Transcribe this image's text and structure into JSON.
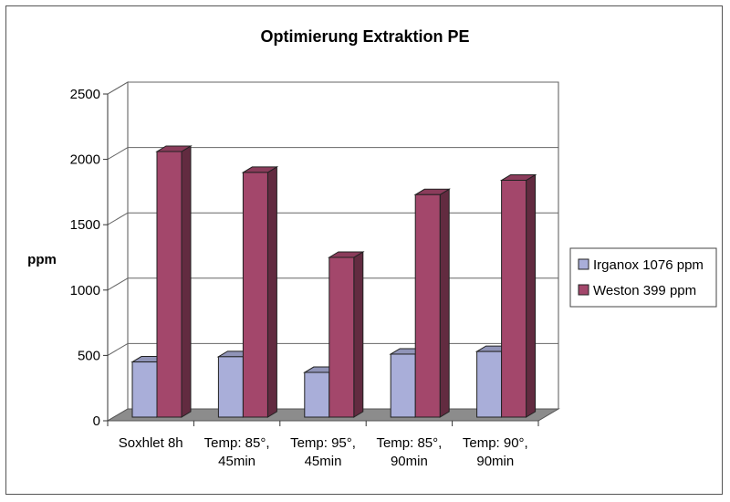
{
  "chart_data": {
    "type": "bar",
    "title": "Optimierung Extraktion PE",
    "ylabel": "ppm",
    "xlabel": "",
    "ylim": [
      0,
      2500
    ],
    "yticks": [
      0,
      500,
      1000,
      1500,
      2000,
      2500
    ],
    "categories": [
      [
        "Soxhlet 8h"
      ],
      [
        "Temp: 85°,",
        "45min"
      ],
      [
        "Temp: 95°,",
        "45min"
      ],
      [
        "Temp: 85°,",
        "90min"
      ],
      [
        "Temp: 90°,",
        "90min"
      ]
    ],
    "series": [
      {
        "name": "Irganox 1076 ppm",
        "color": "#a9aed9",
        "values": [
          450,
          490,
          370,
          510,
          530
        ]
      },
      {
        "name": "Weston 399 ppm",
        "color": "#a3476b",
        "values": [
          2060,
          1900,
          1250,
          1730,
          1840
        ]
      }
    ],
    "grid": true,
    "legend": "right",
    "style": "3d-column"
  }
}
